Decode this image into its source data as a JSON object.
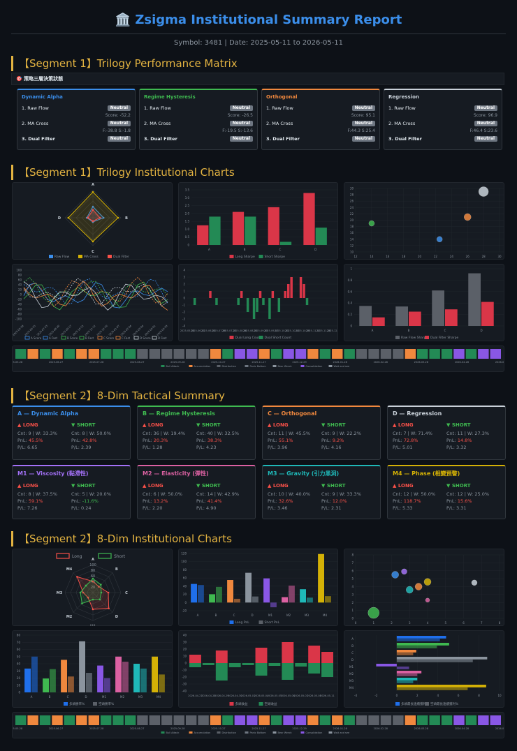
{
  "header": {
    "icon": "bank-icon",
    "title": "Zsigma Institutional Summary Report",
    "meta": "Symbol: 3481 | Date: 2025-05-11 to 2026-05-11"
  },
  "sections": {
    "s1": "【Segment 1】Trilogy Performance Matrix",
    "s2": "【Segment 1】Trilogy Institutional Charts",
    "s3": "【Segment 2】8-Dim Tactical Summary",
    "s4": "【Segment 2】8-Dim Institutional Charts"
  },
  "strip": "🎯 策略三層決策狀態",
  "matrix": [
    {
      "title": "Dynamic Alpha",
      "color": "#3b8eea",
      "rows": [
        "1. Raw Flow",
        "2. MA Cross",
        "3. Dual Filter"
      ],
      "status": [
        "Neutral",
        "Neutral",
        "Neutral"
      ],
      "sub1": "Score: -52.2",
      "sub2": "F:-38.8 S:-1.8"
    },
    {
      "title": "Regime Hysteresis",
      "color": "#3fb950",
      "rows": [
        "1. Raw Flow",
        "2. MA Cross",
        "3. Dual Filter"
      ],
      "status": [
        "Neutral",
        "Neutral",
        "Neutral"
      ],
      "sub1": "Score: -26.5",
      "sub2": "F:-19.5 S:-13.6"
    },
    {
      "title": "Orthogonal",
      "color": "#f0883e",
      "rows": [
        "1. Raw Flow",
        "2. MA Cross",
        "3. Dual Filter"
      ],
      "status": [
        "Neutral",
        "Neutral",
        "Neutral"
      ],
      "sub1": "Score: 95.1",
      "sub2": "F:44.3 S:25.4"
    },
    {
      "title": "Regression",
      "color": "#c9d1d9",
      "rows": [
        "1. Raw Flow",
        "2. MA Cross",
        "3. Dual Filter"
      ],
      "status": [
        "Neutral",
        "Neutral",
        "Neutral"
      ],
      "sub1": "Score: 96.9",
      "sub2": "F:46.4 S:23.6"
    }
  ],
  "tactical": [
    {
      "title": "A — Dynamic Alpha",
      "color": "#3b8eea",
      "long": {
        "label": "▲ LONG",
        "cnt": "Cnt: 9 | W: 33.3%",
        "pnl": "45.5%",
        "pf": "P/L: 6.65"
      },
      "short": {
        "label": "▼ SHORT",
        "cnt": "Cnt: 8 | W: 50.0%",
        "pnl": "42.8%",
        "pf": "P/L: 2.39"
      }
    },
    {
      "title": "B — Regime Hysteresis",
      "color": "#3fb950",
      "long": {
        "label": "▲ LONG",
        "cnt": "Cnt: 36 | W: 19.4%",
        "pnl": "20.3%",
        "pf": "P/L: 1.28"
      },
      "short": {
        "label": "▼ SHORT",
        "cnt": "Cnt: 40 | W: 32.5%",
        "pnl": "38.3%",
        "pf": "P/L: 4.23"
      }
    },
    {
      "title": "C — Orthogonal",
      "color": "#f0883e",
      "long": {
        "label": "▲ LONG",
        "cnt": "Cnt: 11 | W: 45.5%",
        "pnl": "55.1%",
        "pf": "P/L: 3.96"
      },
      "short": {
        "label": "▼ SHORT",
        "cnt": "Cnt: 9 | W: 22.2%",
        "pnl": "9.2%",
        "pf": "P/L: 4.16"
      }
    },
    {
      "title": "D — Regression",
      "color": "#c9d1d9",
      "long": {
        "label": "▲ LONG",
        "cnt": "Cnt: 7 | W: 71.4%",
        "pnl": "72.8%",
        "pf": "P/L: 5.01"
      },
      "short": {
        "label": "▼ SHORT",
        "cnt": "Cnt: 11 | W: 27.3%",
        "pnl": "14.8%",
        "pf": "P/L: 3.32"
      }
    },
    {
      "title": "M1 — Viscosity (黏滯性)",
      "color": "#a371f7",
      "long": {
        "label": "▲ LONG",
        "cnt": "Cnt: 8 | W: 37.5%",
        "pnl": "59.1%",
        "pf": "P/L: 7.26"
      },
      "short": {
        "label": "▼ SHORT",
        "cnt": "Cnt: 5 | W: 20.0%",
        "pnl": "-11.6%",
        "pf": "P/L: 0.24"
      }
    },
    {
      "title": "M2 — Elasticity (彈性)",
      "color": "#db61a2",
      "long": {
        "label": "▲ LONG",
        "cnt": "Cnt: 6 | W: 50.0%",
        "pnl": "13.2%",
        "pf": "P/L: 2.20"
      },
      "short": {
        "label": "▼ SHORT",
        "cnt": "Cnt: 14 | W: 42.9%",
        "pnl": "41.4%",
        "pf": "P/L: 4.90"
      }
    },
    {
      "title": "M3 — Gravity (引力黑洞)",
      "color": "#1fb8b8",
      "long": {
        "label": "▲ LONG",
        "cnt": "Cnt: 10 | W: 40.0%",
        "pnl": "32.6%",
        "pf": "P/L: 3.46"
      },
      "short": {
        "label": "▼ SHORT",
        "cnt": "Cnt: 9 | W: 33.3%",
        "pnl": "12.0%",
        "pf": "P/L: 2.31"
      }
    },
    {
      "title": "M4 — Phase (相變預警)",
      "color": "#d4b106",
      "long": {
        "label": "▲ LONG",
        "cnt": "Cnt: 12 | W: 50.0%",
        "pnl": "118.7%",
        "pf": "P/L: 5.33"
      },
      "short": {
        "label": "▼ SHORT",
        "cnt": "Cnt: 12 | W: 25.0%",
        "pnl": "15.6%",
        "pf": "P/L: 3.31"
      }
    }
  ],
  "chart_data": [
    {
      "type": "radar",
      "axes": [
        "A",
        "B",
        "C",
        "D"
      ],
      "series": [
        {
          "name": "Raw Flow",
          "color": "#3b8eea",
          "values": [
            40,
            38,
            15,
            22
          ]
        },
        {
          "name": "MA Cross",
          "color": "#d4b106",
          "values": [
            92,
            90,
            85,
            88
          ]
        },
        {
          "name": "Dual Filter",
          "color": "#f85149",
          "values": [
            28,
            25,
            12,
            18
          ]
        }
      ]
    },
    {
      "type": "bar",
      "categories": [
        "A",
        "B",
        "C",
        "D"
      ],
      "ylim": [
        0,
        3.5
      ],
      "yticks": [
        "0",
        "0.5",
        "1.0",
        "1.5",
        "2.0",
        "2.5",
        "3.0",
        "3.5"
      ],
      "series": [
        {
          "name": "Long Sharpe",
          "color": "#da3648",
          "values": [
            1.25,
            2.1,
            2.4,
            3.3
          ]
        },
        {
          "name": "Short Sharpe",
          "color": "#238a55",
          "values": [
            1.8,
            1.8,
            0.2,
            1.1
          ]
        }
      ]
    },
    {
      "type": "scatter",
      "xlim": [
        12,
        30
      ],
      "ylim": [
        10,
        30
      ],
      "xticks": [
        "12",
        "14",
        "16",
        "18",
        "20",
        "22",
        "24",
        "26",
        "28",
        "30"
      ],
      "yticks": [
        "10",
        "12",
        "14",
        "16",
        "18",
        "20",
        "22",
        "24",
        "26",
        "28",
        "30"
      ],
      "points": [
        {
          "x": 14,
          "y": 19,
          "r": 4,
          "color": "#3fb950"
        },
        {
          "x": 22.5,
          "y": 14,
          "r": 4,
          "color": "#3b8eea"
        },
        {
          "x": 26,
          "y": 21,
          "r": 5,
          "color": "#f0883e"
        },
        {
          "x": 28,
          "y": 29,
          "r": 7,
          "color": "#c9d1d9"
        }
      ]
    },
    {
      "type": "line",
      "legend": [
        "A Score",
        "A Fast",
        "B Score",
        "B Fast",
        "C Score",
        "C Fast",
        "D Score",
        "D Fast"
      ],
      "colors": [
        "#3b8eea",
        "#3b8eea",
        "#3fb950",
        "#3fb950",
        "#f0883e",
        "#f0883e",
        "#c9d1d9",
        "#c9d1d9"
      ],
      "dates": [
        "2025-05-28",
        "2025-06-11",
        "2025-06-25",
        "2025-07-09",
        "2025-07-23",
        "2025-08-06",
        "2025-08-20",
        "2025-09-03",
        "2025-09-17",
        "2025-10-01",
        "2025-10-15",
        "2025-10-29",
        "2025-11-12",
        "2025-11-26",
        "2025-12-10",
        "2025-12-24",
        "2026-01-07",
        "2026-01-21",
        "2026-02-04",
        "2026-02-18",
        "2026-03-04",
        "2026-03-18",
        "2026-04-01",
        "2026-04-15",
        "2026-04-29"
      ],
      "ylim": [
        -100,
        100
      ],
      "yticks": [
        "100",
        "80",
        "60",
        "40",
        "20",
        "0",
        "-20",
        "-40",
        "-60",
        "-80",
        "-100"
      ]
    },
    {
      "type": "bar",
      "legend": [
        "Dual Long Count",
        "Dual Short Count"
      ],
      "colors": [
        "#da3648",
        "#238a55"
      ],
      "ylim": [
        -4,
        4
      ],
      "yticks": [
        "4",
        "3",
        "2",
        "1",
        "0",
        "-1",
        "-2",
        "-3",
        "-4"
      ],
      "values": [
        0,
        0,
        -1,
        0,
        0,
        0,
        0,
        1,
        0,
        -1,
        0,
        0,
        0,
        0,
        0,
        0,
        -1,
        1,
        0,
        -2,
        0,
        -3,
        -2,
        1,
        -1,
        0,
        -3,
        1,
        0,
        -2,
        0,
        1,
        2,
        3,
        0,
        0,
        3,
        2,
        -1,
        0,
        0,
        0,
        0,
        0,
        0,
        0,
        0
      ]
    },
    {
      "type": "bar",
      "categories": [
        "A",
        "B",
        "C",
        "D"
      ],
      "ylim": [
        0,
        1
      ],
      "yticks": [
        "1",
        "0.8",
        "0.6",
        "0.4",
        "0.2",
        "0"
      ],
      "series": [
        {
          "name": "Raw Flow Sharpe",
          "color": "#5b6068",
          "values": [
            0.35,
            0.34,
            0.62,
            0.92
          ]
        },
        {
          "name": "Dual Filter Sharpe",
          "color": "#da3648",
          "values": [
            0.15,
            0.25,
            0.29,
            0.42
          ]
        }
      ]
    },
    {
      "type": "heatmap",
      "legend": [
        "Bull Attack",
        "Accumulation",
        "Distribution",
        "Panic Bottom",
        "Bear Wreck",
        "Consolidation",
        "Wait and see"
      ],
      "colors": [
        "#238a55",
        "#f0883e",
        "#5b6068",
        "#6e7681",
        "#8b949e",
        "#8957e5",
        "#8b949e"
      ],
      "cells": [
        0,
        1,
        0,
        1,
        0,
        1,
        1,
        0,
        0,
        0,
        2,
        2,
        2,
        2,
        2,
        2,
        1,
        0,
        5,
        5,
        1,
        0,
        5,
        5,
        1,
        0,
        1,
        0,
        2,
        2,
        2,
        2,
        1,
        0,
        0,
        0,
        5,
        0,
        5,
        5
      ],
      "dates": [
        "2025-05-28",
        "2025-06-27",
        "2025-07-28",
        "2025-08-27",
        "2025-09-28",
        "2025-10-27",
        "2025-11-27",
        "2025-12-29",
        "2026-01-28",
        "2026-02-28",
        "2026-03-28",
        "2026-04-28",
        "2026-05-11"
      ]
    },
    {
      "type": "radar",
      "axes": [
        "A",
        "B",
        "C",
        "D",
        "M1",
        "M2",
        "M3",
        "M4"
      ],
      "ticks": [
        "20",
        "40",
        "60",
        "80",
        "100"
      ],
      "series": [
        {
          "name": "Long",
          "color": "#f85149",
          "values": [
            40,
            30,
            55,
            80,
            60,
            25,
            35,
            80
          ]
        },
        {
          "name": "Short",
          "color": "#3fb950",
          "values": [
            50,
            40,
            30,
            35,
            25,
            55,
            45,
            35
          ]
        }
      ]
    },
    {
      "type": "bar",
      "categories": [
        "A",
        "B",
        "C",
        "D",
        "M1",
        "M2",
        "M3",
        "M4"
      ],
      "ylim": [
        -20,
        120
      ],
      "yticks": [
        "120",
        "100",
        "80",
        "60",
        "40",
        "20",
        "0",
        "-20"
      ],
      "series": [
        {
          "name": "Long PnL",
          "color": "#1f6feb",
          "values": [
            45.5,
            20.3,
            55.1,
            72.8,
            59.1,
            13.2,
            32.6,
            118.7
          ]
        },
        {
          "name": "Short PnL",
          "color": "#5b6068",
          "values": [
            42.8,
            38.3,
            9.2,
            14.8,
            -11.6,
            41.4,
            12.0,
            15.6
          ]
        }
      ]
    },
    {
      "type": "scatter",
      "xlim": [
        0,
        8
      ],
      "ylim": [
        0,
        8
      ],
      "xticks": [
        "0",
        "1",
        "2",
        "3",
        "4",
        "5",
        "6",
        "7",
        "8"
      ],
      "yticks": [
        "0",
        "1",
        "2",
        "3",
        "4",
        "5",
        "6",
        "7",
        "8"
      ],
      "points": [
        {
          "x": 1,
          "y": 0.7,
          "r": 8,
          "color": "#3fb950"
        },
        {
          "x": 2.2,
          "y": 5.5,
          "r": 5,
          "color": "#3b8eea"
        },
        {
          "x": 2.7,
          "y": 5.9,
          "r": 4,
          "color": "#a371f7"
        },
        {
          "x": 3,
          "y": 3.6,
          "r": 5,
          "color": "#1fb8b8"
        },
        {
          "x": 3.5,
          "y": 4,
          "r": 5,
          "color": "#f0883e"
        },
        {
          "x": 4,
          "y": 4.6,
          "r": 5,
          "color": "#d4b106"
        },
        {
          "x": 4,
          "y": 2.3,
          "r": 3,
          "color": "#db61a2"
        },
        {
          "x": 6.6,
          "y": 4.5,
          "r": 4,
          "color": "#c9d1d9"
        }
      ]
    },
    {
      "type": "bar",
      "categories": [
        "A",
        "B",
        "C",
        "D",
        "M1",
        "M2",
        "M3",
        "M4"
      ],
      "ylim": [
        0,
        80
      ],
      "yticks": [
        "80",
        "70",
        "60",
        "50",
        "40",
        "30",
        "20",
        "10",
        "0"
      ],
      "series": [
        {
          "name": "多頭勝率%",
          "color": "#1f6feb",
          "values": [
            33.3,
            19.4,
            45.5,
            71.4,
            37.5,
            50.0,
            40.0,
            50.0
          ]
        },
        {
          "name": "空頭勝率%",
          "color": "#5b6068",
          "values": [
            50.0,
            32.5,
            22.2,
            27.3,
            20.0,
            42.9,
            33.3,
            25.0
          ]
        }
      ]
    },
    {
      "type": "bar",
      "legend": [
        "多頭收益",
        "空頭收益"
      ],
      "colors": [
        "#da3648",
        "#238a55"
      ],
      "dates": [
        "2026-04-27",
        "2026-04-28",
        "2026-04-29",
        "2026-04-30",
        "2026-05-01",
        "2026-05-04",
        "2026-05-05",
        "2026-05-06",
        "2026-05-07",
        "2026-05-08",
        "2026-05-11"
      ],
      "ylim": [
        -40,
        40
      ],
      "yticks": [
        "40",
        "30",
        "20",
        "10",
        "0",
        "-10",
        "-20",
        "-30",
        "-40"
      ],
      "long": [
        12,
        0,
        18,
        0,
        0,
        22,
        0,
        30,
        0,
        25,
        16
      ],
      "short": [
        -6,
        -3,
        -25,
        -6,
        -3,
        -18,
        -4,
        -24,
        -5,
        -15,
        -20
      ]
    },
    {
      "type": "bar",
      "orientation": "horizontal",
      "categories": [
        "A",
        "B",
        "C",
        "D",
        "M1",
        "M2",
        "M3",
        "M4"
      ],
      "xlim": [
        -4,
        10
      ],
      "xticks": [
        "-4",
        "-2",
        "0",
        "2",
        "4",
        "6",
        "8",
        "10"
      ],
      "series": [
        {
          "name": "多頭最長連續獲利%",
          "color": "#1f6feb",
          "values": [
            4.8,
            5.1,
            1.9,
            8.8,
            -2.0,
            2.4,
            2.0,
            8.7
          ]
        },
        {
          "name": "空頭最長連續獲利%",
          "color": "#5b6068",
          "values": [
            4.2,
            3.9,
            1.6,
            7.4,
            1.2,
            2.0,
            1.6,
            6.9
          ]
        }
      ]
    },
    {
      "type": "heatmap",
      "legend": [
        "Bull Attack",
        "Accumulation",
        "Distribution",
        "Panic Bottom",
        "Bear Wreck",
        "Consolidation",
        "Wait and see"
      ],
      "colors": [
        "#238a55",
        "#f0883e",
        "#5b6068",
        "#6e7681",
        "#8b949e",
        "#8957e5",
        "#8b949e"
      ],
      "cells": [
        0,
        1,
        0,
        1,
        0,
        1,
        1,
        0,
        0,
        0,
        2,
        2,
        2,
        2,
        2,
        2,
        1,
        0,
        5,
        5,
        1,
        0,
        5,
        5,
        1,
        0,
        1,
        0,
        2,
        2,
        2,
        2,
        1,
        0,
        0,
        0,
        5,
        0,
        5,
        5
      ],
      "dates": [
        "2025-05-28",
        "2025-06-27",
        "2025-07-28",
        "2025-08-27",
        "2025-09-28",
        "2025-10-27",
        "2025-11-27",
        "2025-12-29",
        "2026-01-28",
        "2026-02-28",
        "2026-03-28",
        "2026-04-28",
        "2026-05-11"
      ]
    }
  ]
}
